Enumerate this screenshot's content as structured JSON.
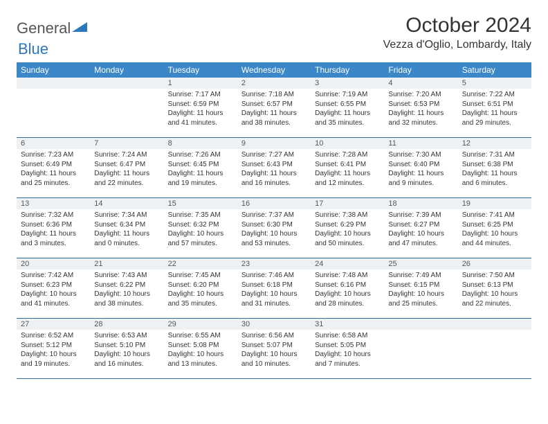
{
  "logo": {
    "part1": "General",
    "part2": "Blue"
  },
  "title": "October 2024",
  "location": "Vezza d'Oglio, Lombardy, Italy",
  "colors": {
    "header_bg": "#3b87c8",
    "header_text": "#ffffff",
    "row_divider": "#2f6fa8",
    "daynum_bg": "#eef1f3",
    "logo_accent": "#2f77bb",
    "text": "#333333"
  },
  "days_of_week": [
    "Sunday",
    "Monday",
    "Tuesday",
    "Wednesday",
    "Thursday",
    "Friday",
    "Saturday"
  ],
  "weeks": [
    [
      null,
      null,
      {
        "n": "1",
        "sr": "7:17 AM",
        "ss": "6:59 PM",
        "dl": "11 hours and 41 minutes."
      },
      {
        "n": "2",
        "sr": "7:18 AM",
        "ss": "6:57 PM",
        "dl": "11 hours and 38 minutes."
      },
      {
        "n": "3",
        "sr": "7:19 AM",
        "ss": "6:55 PM",
        "dl": "11 hours and 35 minutes."
      },
      {
        "n": "4",
        "sr": "7:20 AM",
        "ss": "6:53 PM",
        "dl": "11 hours and 32 minutes."
      },
      {
        "n": "5",
        "sr": "7:22 AM",
        "ss": "6:51 PM",
        "dl": "11 hours and 29 minutes."
      }
    ],
    [
      {
        "n": "6",
        "sr": "7:23 AM",
        "ss": "6:49 PM",
        "dl": "11 hours and 25 minutes."
      },
      {
        "n": "7",
        "sr": "7:24 AM",
        "ss": "6:47 PM",
        "dl": "11 hours and 22 minutes."
      },
      {
        "n": "8",
        "sr": "7:26 AM",
        "ss": "6:45 PM",
        "dl": "11 hours and 19 minutes."
      },
      {
        "n": "9",
        "sr": "7:27 AM",
        "ss": "6:43 PM",
        "dl": "11 hours and 16 minutes."
      },
      {
        "n": "10",
        "sr": "7:28 AM",
        "ss": "6:41 PM",
        "dl": "11 hours and 12 minutes."
      },
      {
        "n": "11",
        "sr": "7:30 AM",
        "ss": "6:40 PM",
        "dl": "11 hours and 9 minutes."
      },
      {
        "n": "12",
        "sr": "7:31 AM",
        "ss": "6:38 PM",
        "dl": "11 hours and 6 minutes."
      }
    ],
    [
      {
        "n": "13",
        "sr": "7:32 AM",
        "ss": "6:36 PM",
        "dl": "11 hours and 3 minutes."
      },
      {
        "n": "14",
        "sr": "7:34 AM",
        "ss": "6:34 PM",
        "dl": "11 hours and 0 minutes."
      },
      {
        "n": "15",
        "sr": "7:35 AM",
        "ss": "6:32 PM",
        "dl": "10 hours and 57 minutes."
      },
      {
        "n": "16",
        "sr": "7:37 AM",
        "ss": "6:30 PM",
        "dl": "10 hours and 53 minutes."
      },
      {
        "n": "17",
        "sr": "7:38 AM",
        "ss": "6:29 PM",
        "dl": "10 hours and 50 minutes."
      },
      {
        "n": "18",
        "sr": "7:39 AM",
        "ss": "6:27 PM",
        "dl": "10 hours and 47 minutes."
      },
      {
        "n": "19",
        "sr": "7:41 AM",
        "ss": "6:25 PM",
        "dl": "10 hours and 44 minutes."
      }
    ],
    [
      {
        "n": "20",
        "sr": "7:42 AM",
        "ss": "6:23 PM",
        "dl": "10 hours and 41 minutes."
      },
      {
        "n": "21",
        "sr": "7:43 AM",
        "ss": "6:22 PM",
        "dl": "10 hours and 38 minutes."
      },
      {
        "n": "22",
        "sr": "7:45 AM",
        "ss": "6:20 PM",
        "dl": "10 hours and 35 minutes."
      },
      {
        "n": "23",
        "sr": "7:46 AM",
        "ss": "6:18 PM",
        "dl": "10 hours and 31 minutes."
      },
      {
        "n": "24",
        "sr": "7:48 AM",
        "ss": "6:16 PM",
        "dl": "10 hours and 28 minutes."
      },
      {
        "n": "25",
        "sr": "7:49 AM",
        "ss": "6:15 PM",
        "dl": "10 hours and 25 minutes."
      },
      {
        "n": "26",
        "sr": "7:50 AM",
        "ss": "6:13 PM",
        "dl": "10 hours and 22 minutes."
      }
    ],
    [
      {
        "n": "27",
        "sr": "6:52 AM",
        "ss": "5:12 PM",
        "dl": "10 hours and 19 minutes."
      },
      {
        "n": "28",
        "sr": "6:53 AM",
        "ss": "5:10 PM",
        "dl": "10 hours and 16 minutes."
      },
      {
        "n": "29",
        "sr": "6:55 AM",
        "ss": "5:08 PM",
        "dl": "10 hours and 13 minutes."
      },
      {
        "n": "30",
        "sr": "6:56 AM",
        "ss": "5:07 PM",
        "dl": "10 hours and 10 minutes."
      },
      {
        "n": "31",
        "sr": "6:58 AM",
        "ss": "5:05 PM",
        "dl": "10 hours and 7 minutes."
      },
      null,
      null
    ]
  ],
  "labels": {
    "sunrise": "Sunrise:",
    "sunset": "Sunset:",
    "daylight": "Daylight:"
  }
}
